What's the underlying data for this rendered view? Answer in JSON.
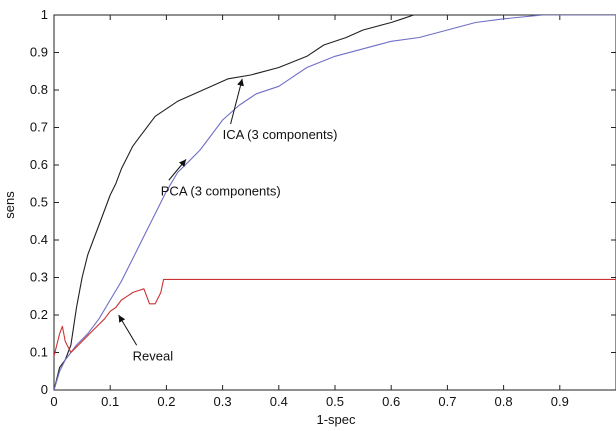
{
  "chart_data": {
    "type": "line",
    "title": "",
    "xlabel": "1-spec",
    "ylabel": "sens",
    "xlim": [
      0,
      1
    ],
    "ylim": [
      0,
      1
    ],
    "grid": false,
    "legend": "none",
    "x_ticks": [
      0,
      0.1,
      0.2,
      0.3,
      0.4,
      0.5,
      0.6,
      0.7,
      0.8,
      0.9
    ],
    "x_tick_labels": [
      "0",
      "0.1",
      "0.2",
      "0.3",
      "0.4",
      "0.5",
      "0.6",
      "0.7",
      "0.8",
      "0.9"
    ],
    "y_ticks": [
      0,
      0.1,
      0.2,
      0.3,
      0.4,
      0.5,
      0.6,
      0.7,
      0.8,
      0.9,
      1
    ],
    "y_tick_labels": [
      "0",
      "0.1",
      "0.2",
      "0.3",
      "0.4",
      "0.5",
      "0.6",
      "0.7",
      "0.8",
      "0.9",
      "1"
    ],
    "series": [
      {
        "name": "ICA (3 components)",
        "color": "#222222",
        "points": [
          [
            0,
            0
          ],
          [
            0.005,
            0.03
          ],
          [
            0.01,
            0.06
          ],
          [
            0.02,
            0.08
          ],
          [
            0.03,
            0.12
          ],
          [
            0.04,
            0.22
          ],
          [
            0.05,
            0.3
          ],
          [
            0.06,
            0.36
          ],
          [
            0.07,
            0.4
          ],
          [
            0.08,
            0.44
          ],
          [
            0.09,
            0.48
          ],
          [
            0.1,
            0.52
          ],
          [
            0.11,
            0.55
          ],
          [
            0.12,
            0.59
          ],
          [
            0.13,
            0.62
          ],
          [
            0.14,
            0.65
          ],
          [
            0.15,
            0.67
          ],
          [
            0.16,
            0.69
          ],
          [
            0.17,
            0.71
          ],
          [
            0.18,
            0.73
          ],
          [
            0.2,
            0.75
          ],
          [
            0.22,
            0.77
          ],
          [
            0.25,
            0.79
          ],
          [
            0.28,
            0.81
          ],
          [
            0.31,
            0.83
          ],
          [
            0.35,
            0.84
          ],
          [
            0.4,
            0.86
          ],
          [
            0.45,
            0.89
          ],
          [
            0.48,
            0.92
          ],
          [
            0.52,
            0.94
          ],
          [
            0.55,
            0.96
          ],
          [
            0.6,
            0.98
          ],
          [
            0.62,
            0.99
          ],
          [
            0.64,
            1.0
          ],
          [
            1.0,
            1.0
          ]
        ]
      },
      {
        "name": "PCA (3 components)",
        "color": "#6f6fc6",
        "points": [
          [
            0,
            0
          ],
          [
            0.01,
            0.05
          ],
          [
            0.02,
            0.08
          ],
          [
            0.03,
            0.1
          ],
          [
            0.04,
            0.12
          ],
          [
            0.06,
            0.15
          ],
          [
            0.08,
            0.19
          ],
          [
            0.1,
            0.24
          ],
          [
            0.12,
            0.29
          ],
          [
            0.14,
            0.35
          ],
          [
            0.16,
            0.41
          ],
          [
            0.18,
            0.47
          ],
          [
            0.2,
            0.53
          ],
          [
            0.22,
            0.58
          ],
          [
            0.24,
            0.61
          ],
          [
            0.26,
            0.64
          ],
          [
            0.28,
            0.68
          ],
          [
            0.3,
            0.72
          ],
          [
            0.33,
            0.76
          ],
          [
            0.36,
            0.79
          ],
          [
            0.4,
            0.81
          ],
          [
            0.42,
            0.83
          ],
          [
            0.45,
            0.86
          ],
          [
            0.5,
            0.89
          ],
          [
            0.55,
            0.91
          ],
          [
            0.6,
            0.93
          ],
          [
            0.65,
            0.94
          ],
          [
            0.7,
            0.96
          ],
          [
            0.75,
            0.98
          ],
          [
            0.8,
            0.99
          ],
          [
            0.87,
            1.0
          ],
          [
            1.0,
            1.0
          ]
        ]
      },
      {
        "name": "Reveal",
        "color": "#cc3333",
        "points": [
          [
            0,
            0.09
          ],
          [
            0.005,
            0.12
          ],
          [
            0.01,
            0.15
          ],
          [
            0.015,
            0.17
          ],
          [
            0.02,
            0.13
          ],
          [
            0.03,
            0.1
          ],
          [
            0.05,
            0.13
          ],
          [
            0.07,
            0.16
          ],
          [
            0.09,
            0.19
          ],
          [
            0.1,
            0.21
          ],
          [
            0.11,
            0.22
          ],
          [
            0.12,
            0.24
          ],
          [
            0.13,
            0.25
          ],
          [
            0.14,
            0.26
          ],
          [
            0.15,
            0.265
          ],
          [
            0.16,
            0.27
          ],
          [
            0.165,
            0.25
          ],
          [
            0.17,
            0.23
          ],
          [
            0.18,
            0.23
          ],
          [
            0.19,
            0.26
          ],
          [
            0.195,
            0.295
          ],
          [
            1.0,
            0.295
          ]
        ]
      }
    ],
    "annotations": [
      {
        "text": "ICA (3 components)",
        "label_x": 0.3,
        "label_y": 0.68,
        "arrow_to_x": 0.335,
        "arrow_to_y": 0.83
      },
      {
        "text": "PCA (3 components)",
        "label_x": 0.19,
        "label_y": 0.53,
        "arrow_to_x": 0.235,
        "arrow_to_y": 0.615
      },
      {
        "text": "Reveal",
        "label_x": 0.14,
        "label_y": 0.09,
        "arrow_to_x": 0.115,
        "arrow_to_y": 0.2
      }
    ]
  }
}
